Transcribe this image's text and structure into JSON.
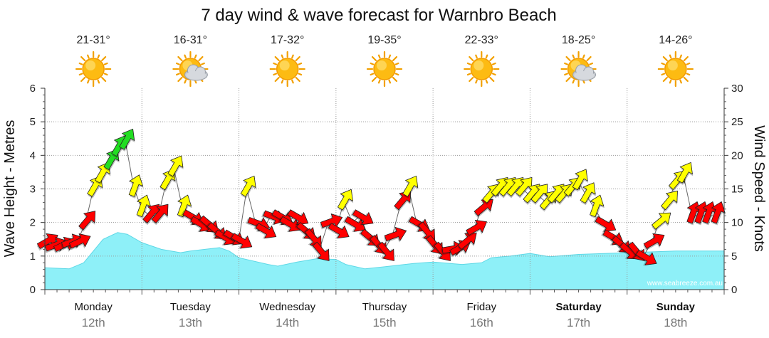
{
  "title": "7 day wind & wave forecast for Warnbro Beach",
  "watermark": "www.seabreeze.com.au",
  "days": [
    {
      "name": "Monday",
      "date": "12th",
      "temp": "21-31°",
      "icon": "sun-icon",
      "bold": false
    },
    {
      "name": "Tuesday",
      "date": "13th",
      "temp": "16-31°",
      "icon": "sun-cloud-icon",
      "bold": false
    },
    {
      "name": "Wednesday",
      "date": "14th",
      "temp": "17-32°",
      "icon": "sun-icon",
      "bold": false
    },
    {
      "name": "Thursday",
      "date": "15th",
      "temp": "19-35°",
      "icon": "sun-icon",
      "bold": false
    },
    {
      "name": "Friday",
      "date": "16th",
      "temp": "22-33°",
      "icon": "sun-icon",
      "bold": false
    },
    {
      "name": "Saturday",
      "date": "17th",
      "temp": "18-25°",
      "icon": "sun-cloud-icon",
      "bold": true
    },
    {
      "name": "Sunday",
      "date": "18th",
      "temp": "14-26°",
      "icon": "sun-icon",
      "bold": true
    }
  ],
  "colors": {
    "wave_fill": "#8ef0f8",
    "wave_line": "#5fd8e6",
    "calm": "#ff0000",
    "moderate": "#ffff00",
    "strong": "#22dd22",
    "grid": "#999999"
  },
  "chart_data": {
    "type": "area",
    "title": "7 day wind & wave forecast for Warnbro Beach",
    "x_unit": "days from Monday 12th 00:00",
    "left_axis": {
      "label": "Wave Height - Metres",
      "range": [
        0,
        6
      ],
      "ticks": [
        "0",
        "1",
        "2",
        "3",
        "4",
        "5",
        "6"
      ]
    },
    "right_axis": {
      "label": "Wind Speed - Knots",
      "range": [
        0,
        30
      ],
      "ticks": [
        "0",
        "5",
        "10",
        "15",
        "20",
        "25",
        "30"
      ]
    },
    "wave_height": {
      "name": "Wave Height",
      "x": [
        0,
        0.25,
        0.4,
        0.6,
        0.75,
        0.85,
        1.0,
        1.2,
        1.4,
        1.5,
        1.8,
        1.9,
        2.0,
        2.3,
        2.4,
        2.6,
        2.8,
        3.0,
        3.1,
        3.3,
        3.5,
        3.8,
        4.0,
        4.3,
        4.5,
        4.6,
        4.8,
        5.0,
        5.2,
        5.5,
        6.0,
        6.5,
        7.0
      ],
      "y": [
        0.65,
        0.62,
        0.8,
        1.5,
        1.7,
        1.65,
        1.4,
        1.2,
        1.1,
        1.15,
        1.25,
        1.15,
        0.95,
        0.75,
        0.7,
        0.82,
        0.92,
        0.9,
        0.75,
        0.62,
        0.68,
        0.78,
        0.82,
        0.75,
        0.8,
        0.95,
        1.0,
        1.08,
        0.98,
        1.05,
        1.1,
        1.15,
        1.15
      ]
    },
    "wind": {
      "name": "Wind Speed",
      "x": [
        0,
        0.08,
        0.17,
        0.25,
        0.33,
        0.42,
        0.5,
        0.58,
        0.67,
        0.75,
        0.83,
        0.92,
        1.0,
        1.08,
        1.17,
        1.25,
        1.33,
        1.42,
        1.5,
        1.58,
        1.67,
        1.75,
        1.83,
        1.92,
        2.0,
        2.08,
        2.17,
        2.25,
        2.33,
        2.42,
        2.5,
        2.58,
        2.67,
        2.75,
        2.83,
        2.92,
        3.0,
        3.08,
        3.17,
        3.25,
        3.33,
        3.42,
        3.5,
        3.58,
        3.67,
        3.75,
        3.83,
        3.92,
        4.0,
        4.08,
        4.17,
        4.25,
        4.33,
        4.42,
        4.5,
        4.58,
        4.67,
        4.75,
        4.83,
        4.92,
        5.0,
        5.08,
        5.17,
        5.25,
        5.33,
        5.42,
        5.5,
        5.58,
        5.67,
        5.75,
        5.83,
        5.92,
        6.0,
        6.08,
        6.17,
        6.25,
        6.33,
        6.42,
        6.5,
        6.58,
        6.67,
        6.75,
        6.83,
        6.92
      ],
      "knots": [
        7,
        6.5,
        6.5,
        7,
        7,
        10,
        15,
        17,
        19,
        21,
        22,
        15,
        12,
        11,
        11,
        16,
        18,
        12,
        11,
        10,
        10,
        9,
        8,
        8,
        7.5,
        15,
        10,
        9,
        11,
        11,
        10,
        11,
        9,
        8,
        6,
        10,
        9,
        13,
        10,
        11,
        8,
        7,
        6,
        8,
        13,
        15,
        10,
        9,
        7,
        6,
        6,
        6,
        7,
        9,
        12,
        14,
        15,
        15,
        15,
        15,
        14,
        14,
        13,
        14,
        14,
        15,
        16,
        14,
        12,
        10,
        8,
        7,
        6,
        6,
        5,
        7,
        10,
        13,
        16,
        17,
        11,
        11,
        11,
        11
      ],
      "levels": [
        "calm",
        "calm",
        "calm",
        "calm",
        "calm",
        "calm",
        "moderate",
        "moderate",
        "strong",
        "strong",
        "strong",
        "moderate",
        "moderate",
        "calm",
        "calm",
        "moderate",
        "moderate",
        "moderate",
        "calm",
        "calm",
        "calm",
        "calm",
        "calm",
        "calm",
        "calm",
        "moderate",
        "calm",
        "calm",
        "calm",
        "calm",
        "calm",
        "calm",
        "calm",
        "calm",
        "calm",
        "calm",
        "calm",
        "moderate",
        "calm",
        "calm",
        "calm",
        "calm",
        "calm",
        "calm",
        "calm",
        "moderate",
        "calm",
        "calm",
        "calm",
        "calm",
        "calm",
        "calm",
        "calm",
        "calm",
        "calm",
        "moderate",
        "moderate",
        "moderate",
        "moderate",
        "moderate",
        "moderate",
        "moderate",
        "moderate",
        "moderate",
        "moderate",
        "moderate",
        "moderate",
        "moderate",
        "moderate",
        "calm",
        "calm",
        "calm",
        "calm",
        "calm",
        "calm",
        "calm",
        "moderate",
        "moderate",
        "moderate",
        "moderate",
        "calm",
        "calm",
        "calm",
        "calm"
      ],
      "direction_deg": [
        240,
        250,
        245,
        250,
        245,
        220,
        210,
        210,
        210,
        210,
        210,
        200,
        200,
        220,
        220,
        210,
        210,
        200,
        300,
        300,
        310,
        310,
        300,
        300,
        300,
        210,
        290,
        300,
        290,
        300,
        300,
        300,
        310,
        320,
        320,
        250,
        300,
        210,
        300,
        300,
        310,
        320,
        320,
        250,
        220,
        210,
        300,
        320,
        320,
        320,
        260,
        240,
        230,
        240,
        230,
        220,
        220,
        220,
        220,
        220,
        220,
        220,
        220,
        220,
        220,
        220,
        210,
        210,
        200,
        300,
        300,
        310,
        310,
        320,
        300,
        240,
        230,
        220,
        220,
        210,
        200,
        200,
        200,
        200
      ]
    }
  }
}
